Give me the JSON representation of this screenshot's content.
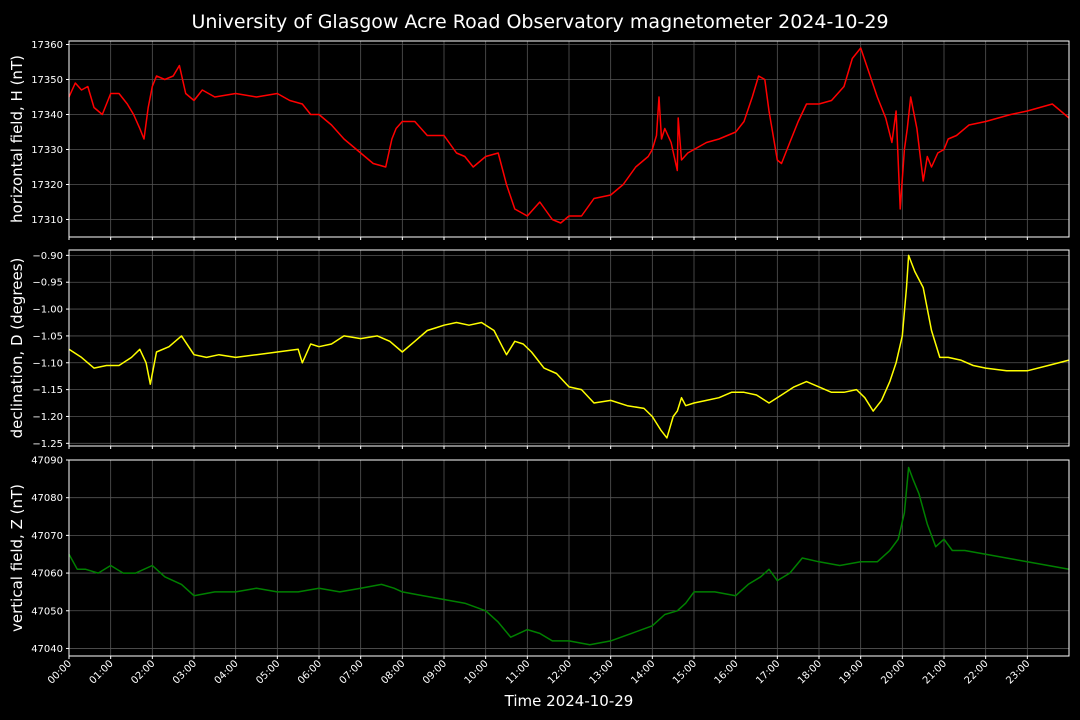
{
  "title": "University of Glasgow Acre Road Observatory magnetometer 2024-10-29",
  "chart_data": [
    {
      "type": "line",
      "ylabel": "horizontal field, H (nT)",
      "color": "#ff0000",
      "ylim": [
        17305,
        17361
      ],
      "yticks": [
        17310,
        17320,
        17330,
        17340,
        17350,
        17360
      ],
      "x": [
        0,
        0.15,
        0.3,
        0.45,
        0.6,
        0.8,
        1.0,
        1.2,
        1.4,
        1.55,
        1.7,
        1.8,
        1.9,
        2.0,
        2.1,
        2.3,
        2.5,
        2.65,
        2.8,
        3.0,
        3.2,
        3.5,
        4.0,
        4.5,
        5.0,
        5.3,
        5.6,
        5.8,
        6.0,
        6.3,
        6.6,
        7.0,
        7.3,
        7.6,
        7.75,
        7.85,
        8.0,
        8.3,
        8.6,
        9.0,
        9.3,
        9.5,
        9.7,
        10.0,
        10.3,
        10.5,
        10.7,
        11.0,
        11.3,
        11.6,
        11.8,
        12.0,
        12.3,
        12.6,
        13.0,
        13.3,
        13.6,
        13.9,
        14.0,
        14.1,
        14.16,
        14.22,
        14.3,
        14.45,
        14.6,
        14.62,
        14.7,
        14.85,
        15.0,
        15.3,
        15.6,
        16.0,
        16.2,
        16.4,
        16.55,
        16.7,
        16.8,
        17.0,
        17.1,
        17.3,
        17.5,
        17.7,
        18.0,
        18.3,
        18.6,
        18.8,
        19.0,
        19.2,
        19.4,
        19.6,
        19.75,
        19.85,
        19.95,
        20.05,
        20.12,
        20.2,
        20.35,
        20.5,
        20.6,
        20.7,
        20.85,
        21.0,
        21.1,
        21.3,
        21.6,
        22.0,
        22.3,
        22.6,
        23.0,
        23.3,
        23.6,
        23.8,
        24.0
      ],
      "y": [
        17345,
        17349,
        17347,
        17348,
        17342,
        17340,
        17346,
        17346,
        17343,
        17340,
        17336,
        17333,
        17342,
        17348,
        17351,
        17350,
        17351,
        17354,
        17346,
        17344,
        17347,
        17345,
        17346,
        17345,
        17346,
        17344,
        17343,
        17340,
        17340,
        17337,
        17333,
        17329,
        17326,
        17325,
        17333,
        17336,
        17338,
        17338,
        17334,
        17334,
        17329,
        17328,
        17325,
        17328,
        17329,
        17320,
        17313,
        17311,
        17315,
        17310,
        17309,
        17311,
        17311,
        17316,
        17317,
        17320,
        17325,
        17328,
        17330,
        17334,
        17345,
        17333,
        17336,
        17332,
        17324,
        17339,
        17327,
        17329,
        17330,
        17332,
        17333,
        17335,
        17338,
        17345,
        17351,
        17350,
        17341,
        17327,
        17326,
        17332,
        17338,
        17343,
        17343,
        17344,
        17348,
        17356,
        17359,
        17352,
        17345,
        17339,
        17332,
        17341,
        17313,
        17330,
        17336,
        17345,
        17336,
        17321,
        17328,
        17325,
        17329,
        17330,
        17333,
        17334,
        17337,
        17338,
        17339,
        17340,
        17341,
        17342,
        17343,
        17341,
        17339
      ]
    },
    {
      "type": "line",
      "ylabel": "declination, D (degrees)",
      "color": "#ffff00",
      "ylim": [
        -1.255,
        -0.89
      ],
      "yticks": [
        -1.25,
        -1.2,
        -1.15,
        -1.1,
        -1.05,
        -1.0,
        -0.95,
        -0.9
      ],
      "x": [
        0,
        0.3,
        0.6,
        0.9,
        1.2,
        1.5,
        1.7,
        1.85,
        1.95,
        2.1,
        2.4,
        2.7,
        3.0,
        3.3,
        3.6,
        4.0,
        4.5,
        5.0,
        5.5,
        5.6,
        5.8,
        6.0,
        6.3,
        6.6,
        7.0,
        7.4,
        7.7,
        8.0,
        8.3,
        8.6,
        8.8,
        9.0,
        9.3,
        9.6,
        9.9,
        10.2,
        10.4,
        10.5,
        10.7,
        10.9,
        11.1,
        11.4,
        11.7,
        12.0,
        12.3,
        12.6,
        13.0,
        13.4,
        13.8,
        14.0,
        14.2,
        14.35,
        14.5,
        14.6,
        14.7,
        14.8,
        15.0,
        15.3,
        15.6,
        15.9,
        16.2,
        16.5,
        16.8,
        17.1,
        17.4,
        17.7,
        18.0,
        18.3,
        18.6,
        18.9,
        19.1,
        19.3,
        19.5,
        19.7,
        19.85,
        20.0,
        20.1,
        20.15,
        20.3,
        20.5,
        20.7,
        20.9,
        21.1,
        21.4,
        21.7,
        22.0,
        22.5,
        23.0,
        23.5,
        24.0
      ],
      "y": [
        -1.075,
        -1.09,
        -1.11,
        -1.105,
        -1.105,
        -1.09,
        -1.075,
        -1.1,
        -1.14,
        -1.08,
        -1.07,
        -1.05,
        -1.085,
        -1.09,
        -1.085,
        -1.09,
        -1.085,
        -1.08,
        -1.075,
        -1.1,
        -1.065,
        -1.07,
        -1.065,
        -1.05,
        -1.055,
        -1.05,
        -1.06,
        -1.08,
        -1.06,
        -1.04,
        -1.035,
        -1.03,
        -1.025,
        -1.03,
        -1.025,
        -1.04,
        -1.07,
        -1.085,
        -1.06,
        -1.065,
        -1.08,
        -1.11,
        -1.12,
        -1.145,
        -1.15,
        -1.175,
        -1.17,
        -1.18,
        -1.185,
        -1.2,
        -1.225,
        -1.24,
        -1.2,
        -1.19,
        -1.165,
        -1.18,
        -1.175,
        -1.17,
        -1.165,
        -1.155,
        -1.155,
        -1.16,
        -1.175,
        -1.16,
        -1.145,
        -1.135,
        -1.145,
        -1.155,
        -1.155,
        -1.15,
        -1.165,
        -1.19,
        -1.17,
        -1.135,
        -1.1,
        -1.05,
        -0.96,
        -0.9,
        -0.93,
        -0.96,
        -1.04,
        -1.09,
        -1.09,
        -1.095,
        -1.105,
        -1.11,
        -1.115,
        -1.115,
        -1.105,
        -1.095
      ]
    },
    {
      "type": "line",
      "ylabel": "vertical field, Z (nT)",
      "color": "#008000",
      "ylim": [
        47038,
        47090
      ],
      "yticks": [
        47040,
        47050,
        47060,
        47070,
        47080,
        47090
      ],
      "x": [
        0,
        0.2,
        0.4,
        0.7,
        1.0,
        1.3,
        1.6,
        2.0,
        2.3,
        2.7,
        3.0,
        3.5,
        4.0,
        4.5,
        5.0,
        5.5,
        6.0,
        6.5,
        7.0,
        7.5,
        7.8,
        8.0,
        8.5,
        9.0,
        9.5,
        10.0,
        10.3,
        10.6,
        11.0,
        11.3,
        11.6,
        12.0,
        12.5,
        13.0,
        13.5,
        14.0,
        14.3,
        14.6,
        14.8,
        15.0,
        15.5,
        16.0,
        16.3,
        16.6,
        16.8,
        17.0,
        17.3,
        17.6,
        18.0,
        18.5,
        19.0,
        19.4,
        19.7,
        19.9,
        20.05,
        20.15,
        20.25,
        20.4,
        20.6,
        20.8,
        21.0,
        21.2,
        21.5,
        22.0,
        22.5,
        23.0,
        23.5,
        24.0
      ],
      "y": [
        47065,
        47061,
        47061,
        47060,
        47062,
        47060,
        47060,
        47062,
        47059,
        47057,
        47054,
        47055,
        47055,
        47056,
        47055,
        47055,
        47056,
        47055,
        47056,
        47057,
        47056,
        47055,
        47054,
        47053,
        47052,
        47050,
        47047,
        47043,
        47045,
        47044,
        47042,
        47042,
        47041,
        47042,
        47044,
        47046,
        47049,
        47050,
        47052,
        47055,
        47055,
        47054,
        47057,
        47059,
        47061,
        47058,
        47060,
        47064,
        47063,
        47062,
        47063,
        47063,
        47066,
        47069,
        47076,
        47088,
        47085,
        47081,
        47073,
        47067,
        47069,
        47066,
        47066,
        47065,
        47064,
        47063,
        47062,
        47061
      ]
    }
  ],
  "xticks": [
    "00:00",
    "01:00",
    "02:00",
    "03:00",
    "04:00",
    "05:00",
    "06:00",
    "07:00",
    "08:00",
    "09:00",
    "10:00",
    "11:00",
    "12:00",
    "13:00",
    "14:00",
    "15:00",
    "16:00",
    "17:00",
    "18:00",
    "19:00",
    "20:00",
    "21:00",
    "22:00",
    "23:00"
  ],
  "xlim": [
    0,
    24
  ],
  "xlabel": "Time 2024-10-29",
  "grid": true
}
